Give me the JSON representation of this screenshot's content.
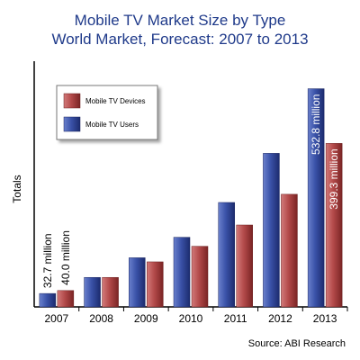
{
  "chart_data": {
    "type": "bar",
    "title": "Mobile TV Market Size by Type",
    "subtitle": "World Market, Forecast: 2007 to 2013",
    "ylabel": "Totals",
    "xlabel": "",
    "source": "Source: ABI Research",
    "categories": [
      "2007",
      "2008",
      "2009",
      "2010",
      "2011",
      "2012",
      "2013"
    ],
    "ylim": [
      0,
      600
    ],
    "grid": false,
    "legend_position": "top-left",
    "series": [
      {
        "name": "Mobile TV Users",
        "color": "#2a3f8f",
        "values": [
          32.7,
          72,
          120,
          170,
          255,
          375,
          532.8
        ],
        "labels": [
          "32.7 million",
          "",
          "",
          "",
          "",
          "",
          "532.8 million"
        ]
      },
      {
        "name": "Mobile TV Devices",
        "color": "#a63d3d",
        "values": [
          40.0,
          72,
          110,
          148,
          200,
          275,
          399.3
        ],
        "labels": [
          "40.0 million",
          "",
          "",
          "",
          "",
          "",
          "399.3 million"
        ]
      }
    ],
    "legend_order": [
      "Mobile TV Devices",
      "Mobile TV Users"
    ]
  }
}
